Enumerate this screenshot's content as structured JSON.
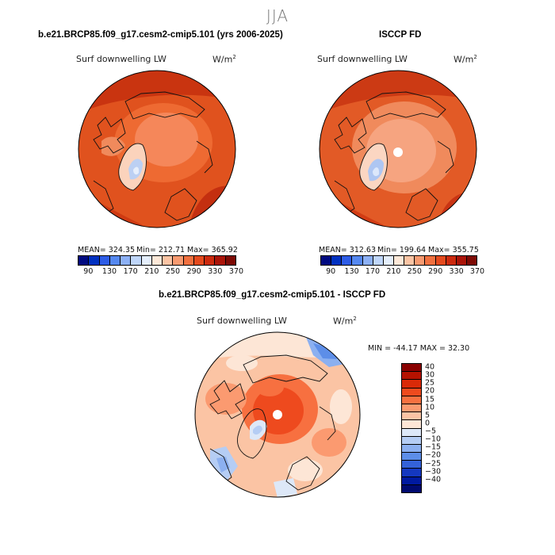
{
  "season": "JJA",
  "panel1": {
    "title": "b.e21.BRCP85.f09_g17.cesm2-cmip5.101 (yrs 2006-2025)",
    "variable": "Surf downwelling LW",
    "units_base": "W/m",
    "units_exp": "2",
    "mean_label": "MEAN= 324.35",
    "min_label": "Min= 212.71",
    "max_label": "Max= 365.92"
  },
  "panel2": {
    "title": "ISCCP FD",
    "variable": "Surf downwelling LW",
    "units_base": "W/m",
    "units_exp": "2",
    "mean_label": "MEAN= 312.63",
    "min_label": "Min= 199.64",
    "max_label": "Max= 355.75"
  },
  "panel3": {
    "title": "b.e21.BRCP85.f09_g17.cesm2-cmip5.101 - ISCCP FD",
    "variable": "Surf downwelling LW",
    "units_base": "W/m",
    "units_exp": "2",
    "range_label": "MIN = -44.17  MAX =  32.30"
  },
  "chart_data": [
    {
      "type": "heatmap",
      "projection": "north polar stereographic",
      "title": "b.e21.BRCP85.f09_g17.cesm2-cmip5.101 (yrs 2006-2025)",
      "variable": "Surf downwelling LW",
      "units": "W/m2",
      "mean": 324.35,
      "min": 212.71,
      "max": 365.92,
      "colorbar_ticks": [
        90,
        130,
        170,
        210,
        250,
        290,
        330,
        370
      ],
      "colors": [
        "#000a80",
        "#0030c0",
        "#2d5ce6",
        "#5588f0",
        "#8cb0f5",
        "#bfd6fa",
        "#e4eefc",
        "#fde8d8",
        "#fbc4a4",
        "#f79a70",
        "#f0703f",
        "#e44a1e",
        "#cc2a0e",
        "#aa1408",
        "#7d0a04"
      ]
    },
    {
      "type": "heatmap",
      "projection": "north polar stereographic",
      "title": "ISCCP FD",
      "variable": "Surf downwelling LW",
      "units": "W/m2",
      "mean": 312.63,
      "min": 199.64,
      "max": 355.75,
      "colorbar_ticks": [
        90,
        130,
        170,
        210,
        250,
        290,
        330,
        370
      ],
      "colors": [
        "#000a80",
        "#0030c0",
        "#2d5ce6",
        "#5588f0",
        "#8cb0f5",
        "#bfd6fa",
        "#e4eefc",
        "#fde8d8",
        "#fbc4a4",
        "#f79a70",
        "#f0703f",
        "#e44a1e",
        "#cc2a0e",
        "#aa1408",
        "#7d0a04"
      ]
    },
    {
      "type": "heatmap",
      "projection": "north polar stereographic",
      "title": "b.e21.BRCP85.f09_g17.cesm2-cmip5.101 - ISCCP FD",
      "variable": "Surf downwelling LW",
      "units": "W/m2",
      "min": -44.17,
      "max": 32.3,
      "colorbar_ticks": [
        40,
        30,
        25,
        20,
        15,
        10,
        5,
        0,
        -5,
        -10,
        -15,
        -20,
        -25,
        -30,
        -40
      ],
      "colors": [
        "#8a0000",
        "#b51200",
        "#d92a08",
        "#ee4a1e",
        "#f77040",
        "#fb9a70",
        "#fcc4a4",
        "#fde6d6",
        "#dde8f8",
        "#b5cdf4",
        "#8cb0f0",
        "#5d8ee8",
        "#3462d8",
        "#1438c0",
        "#001aa0",
        "#000a70"
      ]
    }
  ]
}
